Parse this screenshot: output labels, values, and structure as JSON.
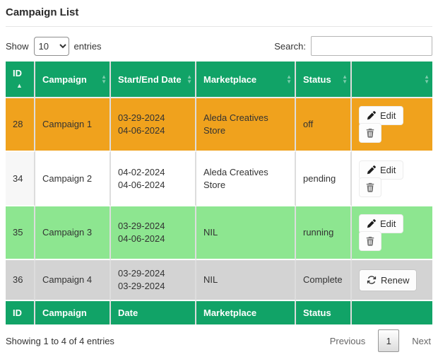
{
  "page": {
    "title": "Campaign List"
  },
  "controls": {
    "show_label": "Show",
    "page_size_selected": "10",
    "entries_label": "entries",
    "search_label": "Search:",
    "search_value": ""
  },
  "table": {
    "columns": [
      {
        "key": "id",
        "label": "ID",
        "sort": "asc"
      },
      {
        "key": "campaign",
        "label": "Campaign",
        "sort": "both"
      },
      {
        "key": "date",
        "label": "Start/End Date",
        "sort": "both"
      },
      {
        "key": "marketplace",
        "label": "Marketplace",
        "sort": "both"
      },
      {
        "key": "status",
        "label": "Status",
        "sort": "both"
      },
      {
        "key": "actions",
        "label": "",
        "sort": "both"
      }
    ],
    "footer_columns": [
      "ID",
      "Campaign",
      "Date",
      "Marketplace",
      "Status",
      ""
    ],
    "rows": [
      {
        "id": "28",
        "campaign": "Campaign 1",
        "dates": [
          "03-29-2024",
          "04-06-2024"
        ],
        "marketplace": "Aleda Creatives Store",
        "status": "off",
        "row_color": "#f0a21d",
        "actions": [
          {
            "type": "edit",
            "label": "Edit",
            "icon": "pencil-icon"
          },
          {
            "type": "delete",
            "label": "",
            "icon": "trash-icon"
          }
        ]
      },
      {
        "id": "34",
        "campaign": "Campaign 2",
        "dates": [
          "04-02-2024",
          "04-06-2024"
        ],
        "marketplace": "Aleda Creatives Store",
        "status": "pending",
        "row_color": "#ffffff",
        "actions": [
          {
            "type": "edit",
            "label": "Edit",
            "icon": "pencil-icon"
          },
          {
            "type": "delete",
            "label": "",
            "icon": "trash-icon"
          }
        ]
      },
      {
        "id": "35",
        "campaign": "Campaign 3",
        "dates": [
          "03-29-2024",
          "04-06-2024"
        ],
        "marketplace": "NIL",
        "status": "running",
        "row_color": "#8de690",
        "actions": [
          {
            "type": "edit",
            "label": "Edit",
            "icon": "pencil-icon"
          },
          {
            "type": "delete",
            "label": "",
            "icon": "trash-icon"
          }
        ]
      },
      {
        "id": "36",
        "campaign": "Campaign 4",
        "dates": [
          "03-29-2024",
          "03-29-2024"
        ],
        "marketplace": "NIL",
        "status": "Complete",
        "row_color": "#d3d3d3",
        "actions": [
          {
            "type": "renew",
            "label": "Renew",
            "icon": "refresh-icon"
          }
        ]
      }
    ]
  },
  "summary": {
    "text": "Showing 1 to 4 of 4 entries"
  },
  "pagination": {
    "previous_label": "Previous",
    "current_page": "1",
    "next_label": "Next"
  },
  "colors": {
    "header_green": "#11a367",
    "row_off_orange": "#f0a21d",
    "row_pending_white": "#ffffff",
    "row_running_green": "#8de690",
    "row_complete_gray": "#d3d3d3"
  }
}
